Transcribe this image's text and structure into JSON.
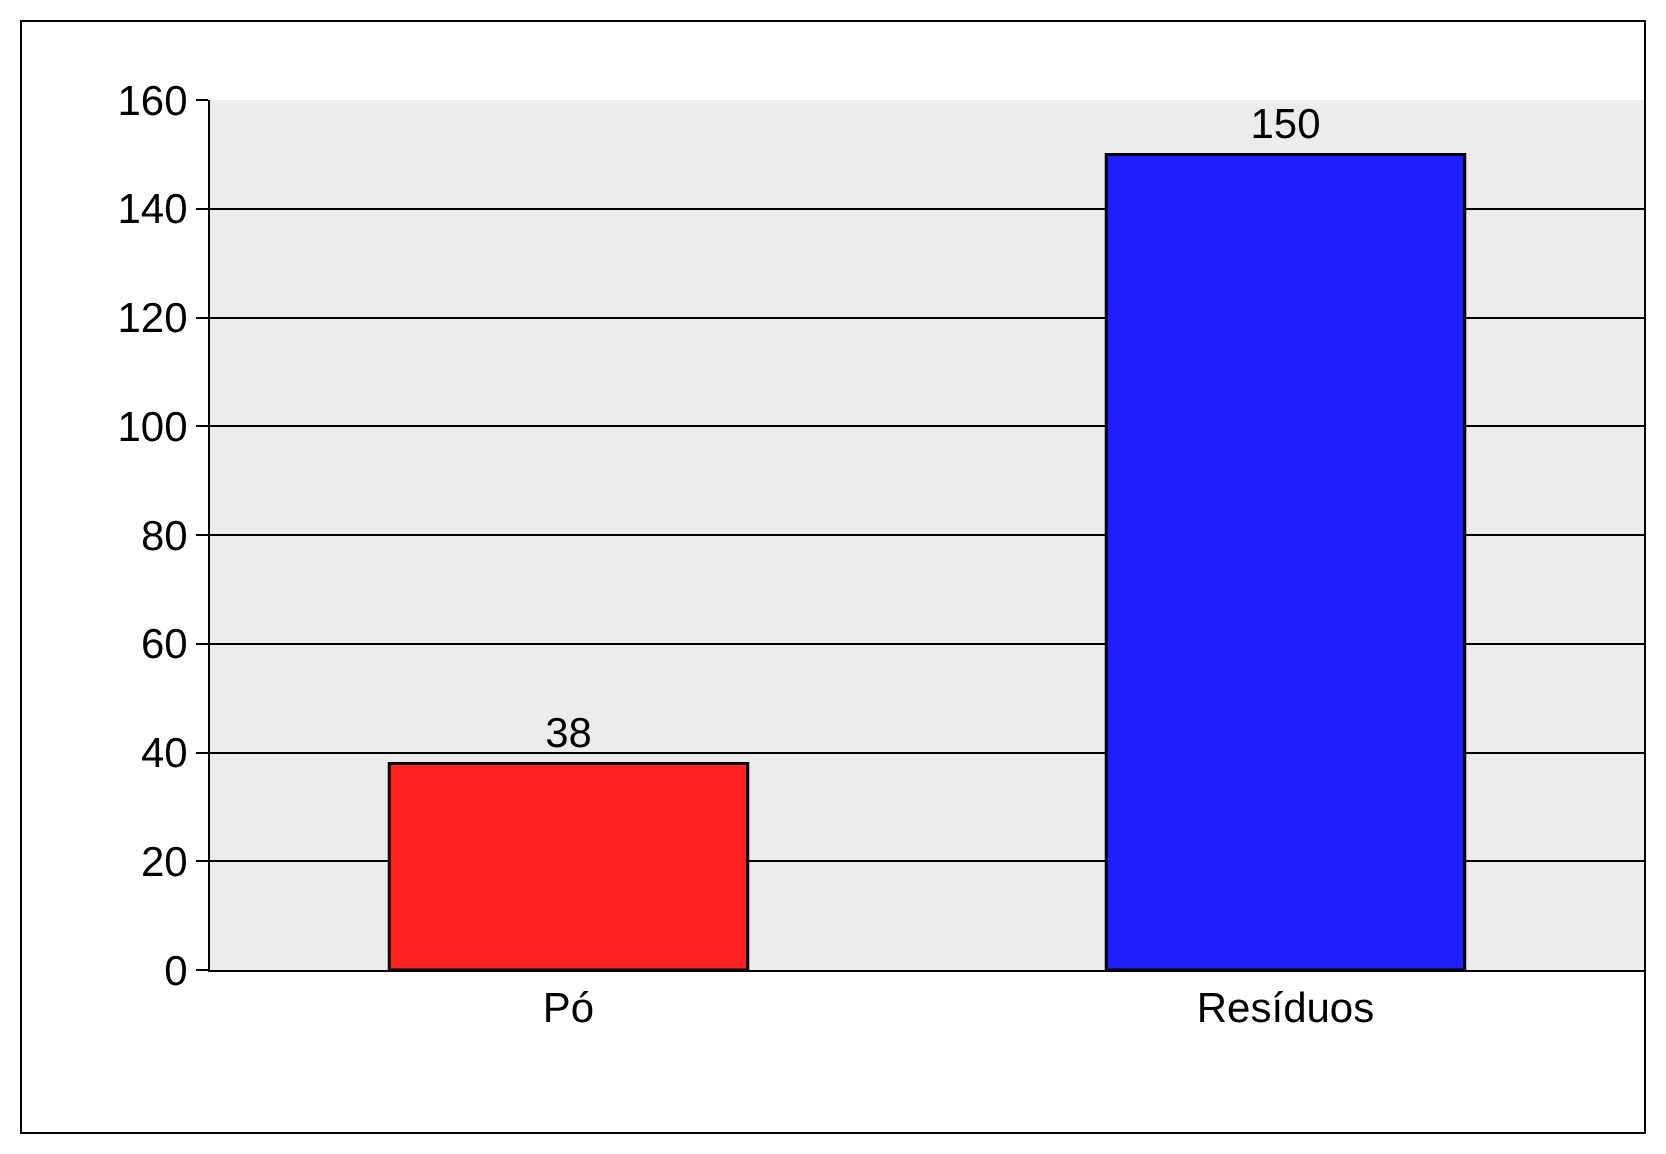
{
  "chart_data": {
    "type": "bar",
    "categories": [
      "Pó",
      "Resíduos"
    ],
    "values": [
      38,
      150
    ],
    "colors": [
      "#ff2020",
      "#2020ff"
    ],
    "ylim": [
      0,
      160
    ],
    "yticks": [
      0,
      20,
      40,
      60,
      80,
      100,
      120,
      140,
      160
    ],
    "grid": "y",
    "data_labels": true
  }
}
